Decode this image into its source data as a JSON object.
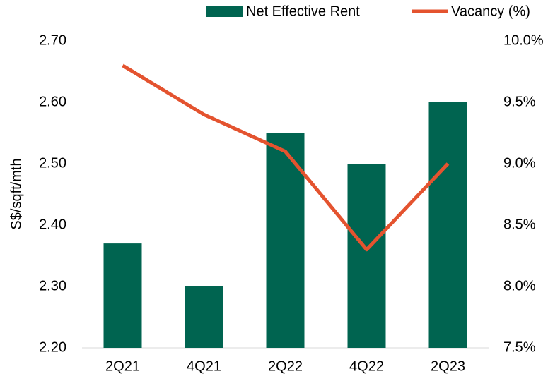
{
  "chart_data": {
    "type": "bar",
    "y_label": "S$/sqft/mth",
    "categories": [
      "2Q21",
      "4Q21",
      "2Q22",
      "4Q22",
      "2Q23"
    ],
    "series": [
      {
        "name": "Net Effective Rent",
        "type": "bar",
        "color": "#006450",
        "values": [
          2.37,
          2.3,
          2.55,
          2.5,
          2.6
        ]
      },
      {
        "name": "Vacancy (%)",
        "type": "line",
        "axis": "y2",
        "color": "#e4532f",
        "values": [
          9.8,
          9.4,
          9.1,
          8.3,
          9.0
        ]
      }
    ],
    "ylim": [
      2.2,
      2.7
    ],
    "yticks": [
      {
        "value": 2.2,
        "label": "2.20"
      },
      {
        "value": 2.3,
        "label": "2.30"
      },
      {
        "value": 2.4,
        "label": "2.40"
      },
      {
        "value": 2.5,
        "label": "2.50"
      },
      {
        "value": 2.6,
        "label": "2.60"
      },
      {
        "value": 2.7,
        "label": "2.70"
      }
    ],
    "y2lim": [
      7.5,
      10
    ],
    "y2ticks": [
      {
        "value": 7.5,
        "label": "7.5%"
      },
      {
        "value": 8,
        "label": "8.0%"
      },
      {
        "value": 8.5,
        "label": "8.5%"
      },
      {
        "value": 9,
        "label": "9.0%"
      },
      {
        "value": 9.5,
        "label": "9.5%"
      },
      {
        "value": 10,
        "label": "10.0%"
      }
    ],
    "legend": "top-right"
  }
}
